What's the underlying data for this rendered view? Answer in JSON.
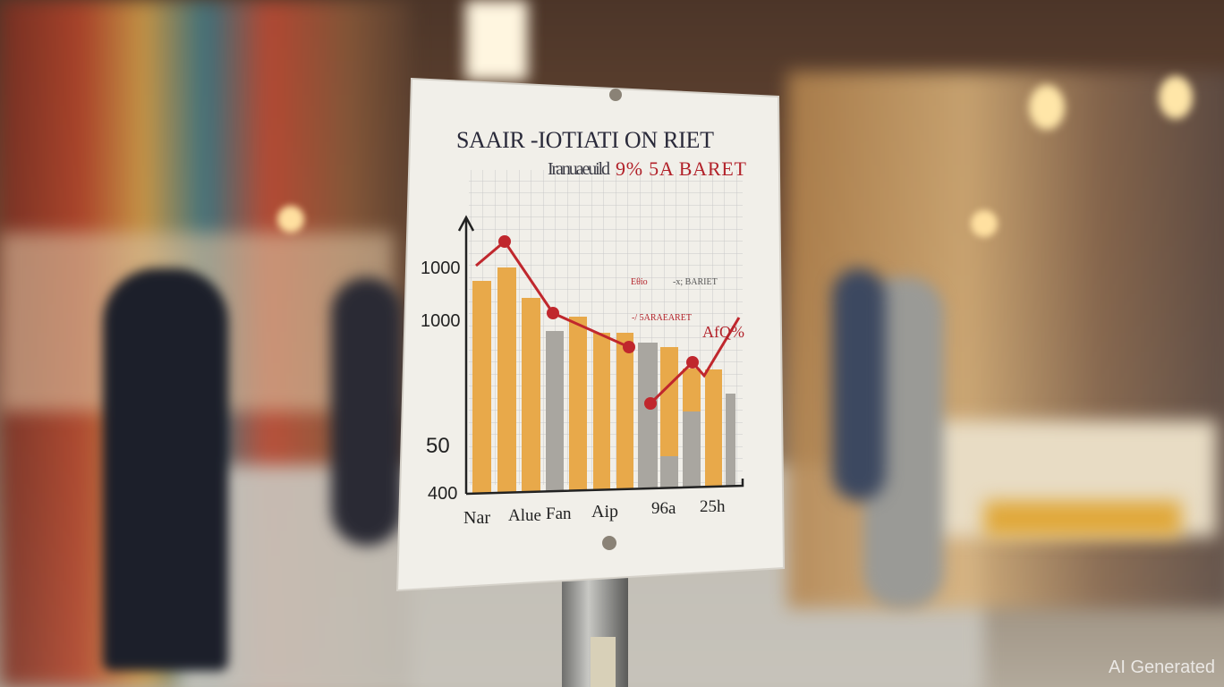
{
  "sign": {
    "title": "SAAIR -IOTIATI ON RIET",
    "subtitle_left": "Iranuaeuild",
    "subtitle_right": "9% 5A BARET",
    "y_labels": [
      "1000",
      "1000",
      "50",
      "400"
    ],
    "x_labels": [
      "Nar",
      "Alue",
      "Fan",
      "Aip",
      "96a",
      "25h"
    ],
    "annotations": [
      "Eθio",
      "-x; BARIET",
      "-/ 5ARAEARET",
      "AfQ%"
    ],
    "colors": {
      "bar_orange": "#e8a94a",
      "bar_gray": "#a9a6a0",
      "line_red": "#c0272d",
      "paper": "#f1efe9"
    }
  },
  "watermark": "AI Generated"
}
